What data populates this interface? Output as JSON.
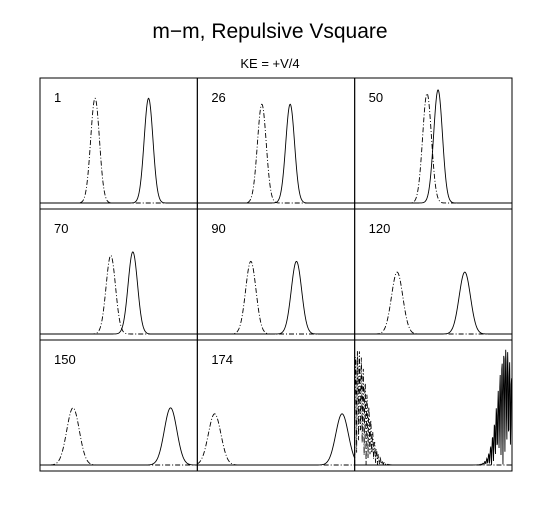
{
  "header": {
    "title": "m−m, Repulsive Vsquare",
    "subtitle": "KE = +V/4"
  },
  "chart_data": {
    "type": "line",
    "title": "m−m, Repulsive Vsquare",
    "subtitle": "KE = +V/4",
    "layout": "3x3 panel grid",
    "xlabel": "",
    "ylabel": "",
    "xlim": [
      0,
      1
    ],
    "ylim": [
      0,
      1
    ],
    "grid": false,
    "legend": "none",
    "series_styles": {
      "dashed": "dash-dot",
      "solid": "solid"
    },
    "panels": [
      {
        "label": "1",
        "peaks": [
          {
            "style": "dashed",
            "center": 0.35,
            "width": 0.028,
            "height": 0.88
          },
          {
            "style": "solid",
            "center": 0.69,
            "width": 0.028,
            "height": 0.88
          }
        ]
      },
      {
        "label": "26",
        "peaks": [
          {
            "style": "dashed",
            "center": 0.41,
            "width": 0.028,
            "height": 0.83
          },
          {
            "style": "solid",
            "center": 0.59,
            "width": 0.028,
            "height": 0.83
          }
        ]
      },
      {
        "label": "50",
        "peaks": [
          {
            "style": "dashed",
            "center": 0.46,
            "width": 0.028,
            "height": 0.92
          },
          {
            "style": "solid",
            "center": 0.53,
            "width": 0.028,
            "height": 0.95
          }
        ]
      },
      {
        "label": "70",
        "peaks": [
          {
            "style": "dashed",
            "center": 0.45,
            "width": 0.03,
            "height": 0.66
          },
          {
            "style": "solid",
            "center": 0.59,
            "width": 0.03,
            "height": 0.69
          }
        ]
      },
      {
        "label": "90",
        "peaks": [
          {
            "style": "dashed",
            "center": 0.34,
            "width": 0.033,
            "height": 0.61
          },
          {
            "style": "solid",
            "center": 0.63,
            "width": 0.033,
            "height": 0.61
          }
        ]
      },
      {
        "label": "120",
        "peaks": [
          {
            "style": "dashed",
            "center": 0.27,
            "width": 0.036,
            "height": 0.52
          },
          {
            "style": "solid",
            "center": 0.7,
            "width": 0.036,
            "height": 0.52
          }
        ]
      },
      {
        "label": "150",
        "peaks": [
          {
            "style": "dashed",
            "center": 0.21,
            "width": 0.04,
            "height": 0.48
          },
          {
            "style": "solid",
            "center": 0.83,
            "width": 0.04,
            "height": 0.48
          }
        ]
      },
      {
        "label": "174",
        "peaks": [
          {
            "style": "dashed",
            "center": 0.11,
            "width": 0.04,
            "height": 0.43
          },
          {
            "style": "solid",
            "center": 0.92,
            "width": 0.04,
            "height": 0.43
          }
        ]
      },
      {
        "label": "",
        "peaks": [
          {
            "style": "dashed",
            "center": 0.02,
            "width": 0.06,
            "height": 0.97,
            "oscillating": true
          },
          {
            "style": "solid",
            "center": 0.96,
            "width": 0.05,
            "height": 0.98,
            "oscillating": true
          }
        ]
      }
    ]
  }
}
